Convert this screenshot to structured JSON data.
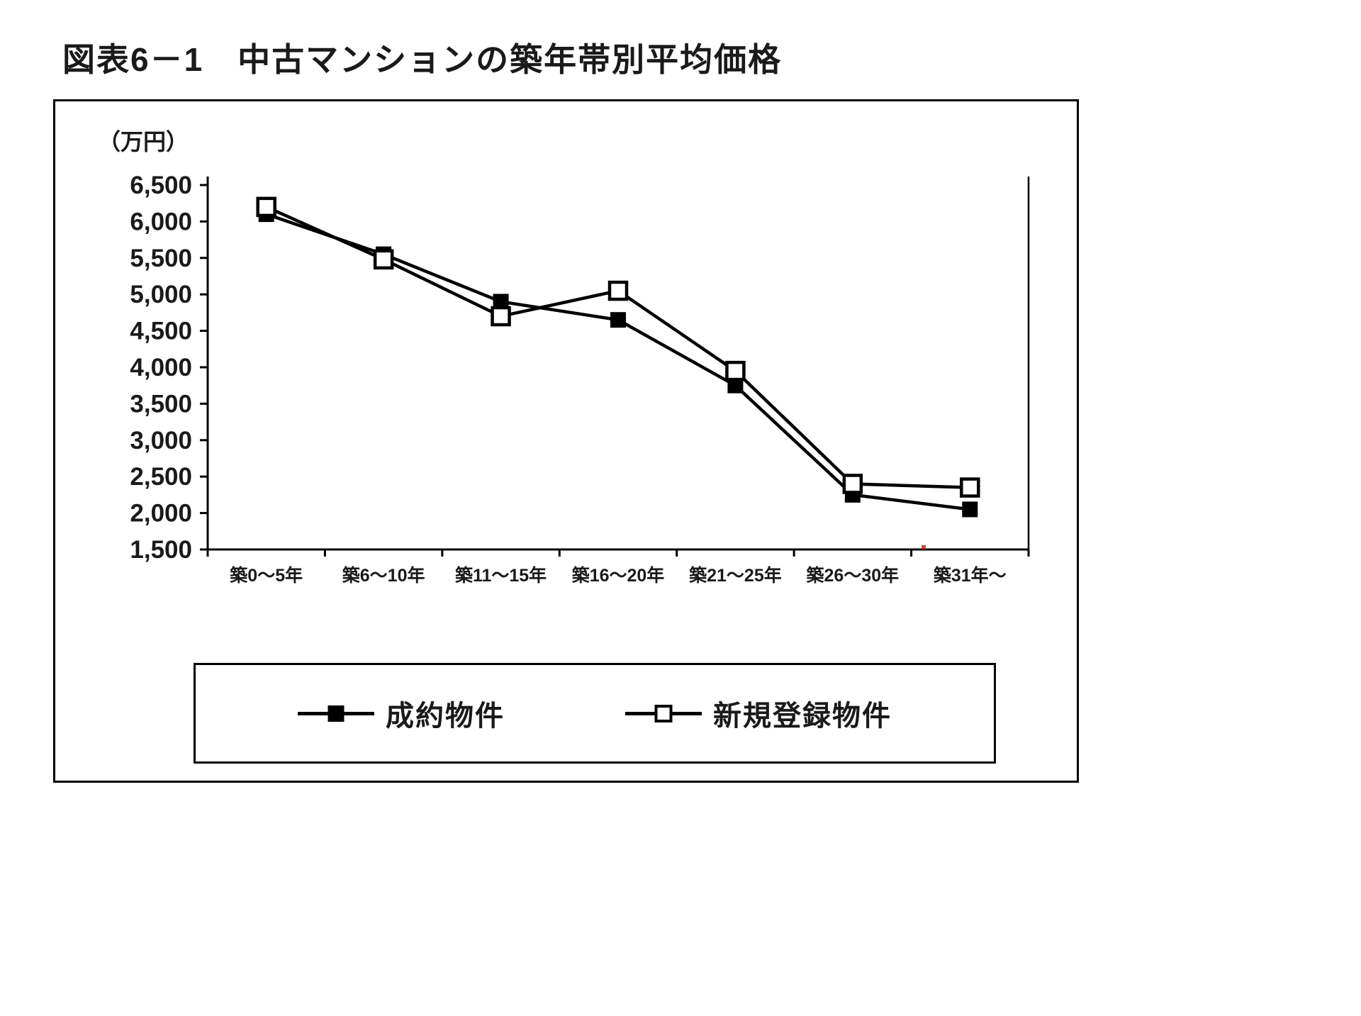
{
  "page": {
    "title": "図表6－1　中古マンションの築年帯別平均価格"
  },
  "chart_data": {
    "type": "line",
    "title": "図表6－1　中古マンションの築年帯別平均価格",
    "unit_label": "（万円）",
    "xlabel": "",
    "ylabel": "価格（万円）",
    "categories": [
      "築0～5年",
      "築6～10年",
      "築11～15年",
      "築16～20年",
      "築21～25年",
      "築26～30年",
      "築31年～"
    ],
    "series": [
      {
        "name": "成約物件",
        "marker": "filled-square",
        "color": "#000000",
        "values": [
          6100,
          5550,
          4900,
          4650,
          3750,
          2250,
          2050
        ]
      },
      {
        "name": "新規登録物件",
        "marker": "open-square",
        "color": "#000000",
        "values": [
          6200,
          5480,
          4700,
          5050,
          3950,
          2400,
          2350
        ]
      }
    ],
    "ylim": [
      1500,
      6500
    ],
    "ytick_step": 500,
    "ytick_labels": [
      "6,500",
      "6,000",
      "5,500",
      "5,000",
      "4,500",
      "4,000",
      "3,500",
      "3,000",
      "2,500",
      "2,000",
      "1,500"
    ],
    "grid": false,
    "legend_position": "bottom-box"
  }
}
